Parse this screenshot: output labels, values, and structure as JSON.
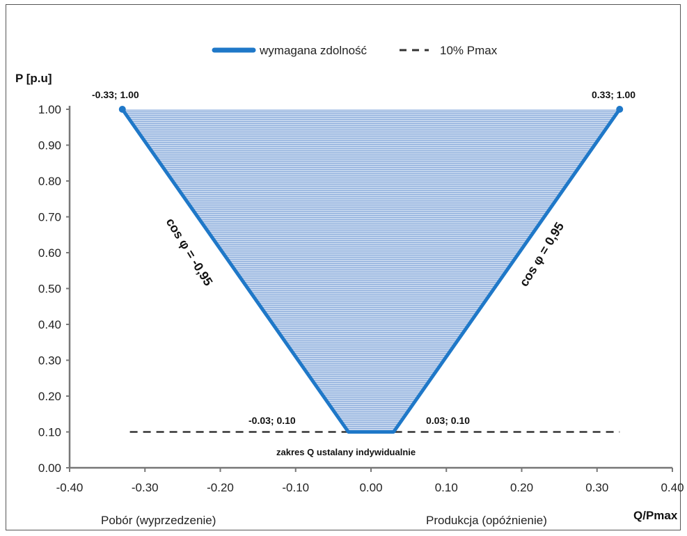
{
  "chart_data": {
    "type": "area",
    "title": "",
    "ylabel": "P [p.u]",
    "xlabel": "Q/Pmax",
    "xlim": [
      -0.4,
      0.4
    ],
    "ylim": [
      0.0,
      1.0
    ],
    "x_ticks": [
      "-0.40",
      "-0.30",
      "-0.20",
      "-0.10",
      "0.00",
      "0.10",
      "0.20",
      "0.30",
      "0.40"
    ],
    "y_ticks": [
      "0.00",
      "0.10",
      "0.20",
      "0.30",
      "0.40",
      "0.50",
      "0.60",
      "0.70",
      "0.80",
      "0.90",
      "1.00"
    ],
    "x_tick_values": [
      -0.4,
      -0.3,
      -0.2,
      -0.1,
      0.0,
      0.1,
      0.2,
      0.3,
      0.4
    ],
    "y_tick_values": [
      0.0,
      0.1,
      0.2,
      0.3,
      0.4,
      0.5,
      0.6,
      0.7,
      0.8,
      0.9,
      1.0
    ],
    "legend": {
      "position": "top-center",
      "entries": [
        "wymagana zdolność",
        "10% Pmax"
      ]
    },
    "series": [
      {
        "name": "wymagana zdolność",
        "style": "solid",
        "color": "#1f78c8",
        "points": [
          {
            "x": -0.33,
            "y": 1.0
          },
          {
            "x": -0.03,
            "y": 0.1
          },
          {
            "x": 0.03,
            "y": 0.1
          },
          {
            "x": 0.33,
            "y": 1.0
          }
        ]
      },
      {
        "name": "10% Pmax",
        "style": "dashed",
        "color": "#333333",
        "points": [
          {
            "x": -0.32,
            "y": 0.1
          },
          {
            "x": 0.33,
            "y": 0.1
          }
        ]
      }
    ],
    "fill": {
      "color": "#a9c4e8"
    },
    "annotations": {
      "top_left": "-0.33; 1.00",
      "top_right": "0.33; 1.00",
      "bottom_left": "-0.03; 0.10",
      "bottom_right": "0.03; 0.10",
      "slope_left": "cos φ = -0,95",
      "slope_right": "cos φ = 0,95",
      "range_note": "zakres Q ustalany indywidualnie",
      "x_left_label": "Pobór (wyprzedzenie)",
      "x_right_label": "Produkcja (opóźnienie)"
    }
  }
}
